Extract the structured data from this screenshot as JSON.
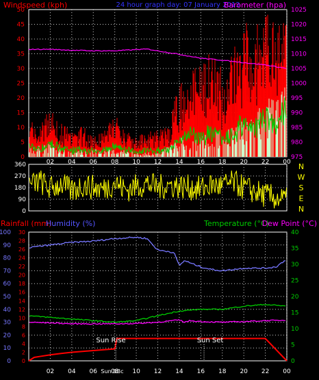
{
  "header": {
    "wind_title": "Windspeed (kph)",
    "center_title": "24 hour graph day: 07 January 2013",
    "baro_title": "Barometer (hpa)"
  },
  "bottom_header": {
    "rain_title": "Rainfall (mm)",
    "humidity_title": "Humidity (%)",
    "temp_title": "Temperature (°C)",
    "dew_title": "Dew Point (°C)"
  },
  "compass": [
    "N",
    "W",
    "S",
    "E",
    "N"
  ],
  "x_ticks": [
    "02",
    "04",
    "06",
    "08",
    "10",
    "12",
    "14",
    "16",
    "18",
    "20",
    "22",
    "00"
  ],
  "sun_labels": {
    "rise": "Sun Rise",
    "set": "Sun Set",
    "marker": "Sun BBc"
  },
  "colors": {
    "wind": "#ff0000",
    "gust_green": "#00cc00",
    "wind_white": "#ccffcc",
    "baro": "#ff00ff",
    "wind_dir": "#ffff00",
    "humidity": "#7777ff",
    "temperature": "#00cc00",
    "dew_point": "#ff00ff",
    "rain": "#ff0000",
    "grid": "#cccccc"
  },
  "chart_data": [
    {
      "type": "line",
      "name": "wind-baro",
      "left_axis": {
        "label": "Windspeed (kph)",
        "min": 0,
        "max": 50,
        "ticks": [
          0,
          5,
          10,
          15,
          20,
          25,
          30,
          35,
          40,
          45,
          50
        ]
      },
      "right_axis": {
        "label": "Barometer (hpa)",
        "min": 975,
        "max": 1025,
        "ticks": [
          975,
          980,
          985,
          990,
          995,
          1000,
          1005,
          1010,
          1015,
          1020,
          1025
        ]
      },
      "x_range_hours": [
        0,
        24
      ],
      "series": [
        {
          "name": "Windspeed",
          "axis": "left",
          "x": [
            0,
            1,
            2,
            3,
            4,
            5,
            6,
            7,
            8,
            9,
            10,
            11,
            12,
            13,
            14,
            15,
            16,
            17,
            18,
            19,
            20,
            21,
            22,
            23,
            24
          ],
          "values": [
            6,
            4,
            8,
            5,
            3,
            4,
            2,
            3,
            6,
            3,
            2,
            3,
            3,
            4,
            12,
            16,
            15,
            18,
            14,
            17,
            26,
            22,
            30,
            28,
            36
          ]
        },
        {
          "name": "Gust",
          "axis": "left",
          "x": [
            0,
            1,
            2,
            3,
            4,
            5,
            6,
            7,
            8,
            9,
            10,
            11,
            12,
            13,
            14,
            15,
            16,
            17,
            18,
            19,
            20,
            21,
            22,
            23,
            24
          ],
          "values": [
            11,
            9,
            14,
            10,
            7,
            9,
            6,
            8,
            12,
            8,
            6,
            7,
            8,
            9,
            22,
            28,
            26,
            30,
            25,
            30,
            40,
            36,
            46,
            42,
            45
          ]
        },
        {
          "name": "Average",
          "axis": "left",
          "x": [
            0,
            2,
            4,
            6,
            8,
            10,
            12,
            14,
            16,
            18,
            20,
            22,
            24
          ],
          "values": [
            2,
            3,
            1,
            2,
            2,
            1,
            1,
            4,
            5,
            6,
            8,
            12,
            16
          ]
        },
        {
          "name": "Barometer",
          "axis": "right",
          "x": [
            0,
            2,
            4,
            6,
            8,
            10,
            11,
            12,
            14,
            16,
            18,
            20,
            22,
            24
          ],
          "values": [
            1011.5,
            1011.5,
            1011.2,
            1011,
            1011,
            1011.4,
            1011.6,
            1011,
            1009.8,
            1008.5,
            1007.8,
            1007,
            1006.2,
            1005
          ]
        }
      ]
    },
    {
      "type": "line",
      "name": "wind-direction",
      "axis": {
        "min": 0,
        "max": 360,
        "ticks": [
          0,
          90,
          180,
          270,
          360
        ]
      },
      "x_range_hours": [
        0,
        24
      ],
      "series": [
        {
          "name": "Wind direction",
          "x": [
            0,
            1,
            2,
            3,
            4,
            5,
            6,
            7,
            8,
            9,
            10,
            11,
            12,
            13,
            14,
            15,
            16,
            17,
            18,
            19,
            20,
            21,
            22,
            23,
            24
          ],
          "values": [
            190,
            230,
            170,
            210,
            150,
            200,
            180,
            170,
            220,
            160,
            190,
            210,
            180,
            200,
            190,
            180,
            170,
            200,
            190,
            220,
            180,
            150,
            120,
            100,
            80
          ]
        }
      ]
    },
    {
      "type": "line",
      "name": "temperature-humidity-rain",
      "axes": {
        "humidity": {
          "label": "Humidity (%)",
          "min": 0,
          "max": 100,
          "ticks": [
            0,
            10,
            20,
            30,
            40,
            50,
            60,
            70,
            80,
            90,
            100
          ]
        },
        "rain": {
          "label": "Rainfall (mm)",
          "min": 0,
          "max": 30,
          "ticks": [
            0,
            2,
            4,
            6,
            8,
            10,
            12,
            14,
            16,
            18,
            20,
            22,
            24,
            26,
            28,
            30
          ]
        },
        "temperature": {
          "label": "Temperature (°C)",
          "min": 0,
          "max": 40,
          "ticks": [
            0,
            5,
            10,
            15,
            20,
            25,
            30,
            35,
            40
          ]
        }
      },
      "x_range_hours": [
        0,
        24
      ],
      "series": [
        {
          "name": "Humidity",
          "axis": "humidity",
          "x": [
            0,
            2,
            4,
            6,
            8,
            10,
            11,
            12,
            13,
            13.5,
            14,
            14.5,
            15,
            16,
            17,
            18,
            20,
            22,
            23,
            24
          ],
          "values": [
            88,
            90,
            92,
            93,
            95,
            96,
            95,
            86,
            85,
            84,
            74,
            78,
            76,
            73,
            71,
            70,
            72,
            72,
            73,
            79
          ]
        },
        {
          "name": "Temperature",
          "axis": "temperature",
          "x": [
            0,
            2,
            4,
            6,
            8,
            10,
            12,
            14,
            16,
            18,
            20,
            22,
            24
          ],
          "values": [
            14,
            13.5,
            13,
            12.5,
            12,
            12.5,
            14,
            15.5,
            16,
            16,
            17,
            17.5,
            17
          ]
        },
        {
          "name": "Dew Point",
          "axis": "temperature",
          "x": [
            0,
            2,
            4,
            6,
            8,
            10,
            12,
            14,
            14.5,
            15,
            16,
            18,
            20,
            22,
            24
          ],
          "values": [
            12,
            11.8,
            11.5,
            11.5,
            11.5,
            11.6,
            12,
            12.7,
            12,
            12.5,
            12.2,
            12,
            12.2,
            12.5,
            12.6
          ]
        },
        {
          "name": "Rainfall",
          "axis": "rain",
          "x": [
            0,
            0.5,
            1,
            2,
            3,
            4,
            5,
            6,
            7,
            8,
            8.2,
            10,
            12,
            14,
            16,
            18,
            20,
            22,
            24
          ],
          "values": [
            0,
            0.8,
            1,
            1.4,
            1.7,
            2,
            2.2,
            2.4,
            2.6,
            2.8,
            5.2,
            5.2,
            5.2,
            5.2,
            5.2,
            5.2,
            5.2,
            5.2,
            0
          ]
        }
      ],
      "annotations": [
        {
          "text": "Sun Rise",
          "x_hours": 8.1
        },
        {
          "text": "Sun Set",
          "x_hours": 16.3
        }
      ]
    }
  ]
}
